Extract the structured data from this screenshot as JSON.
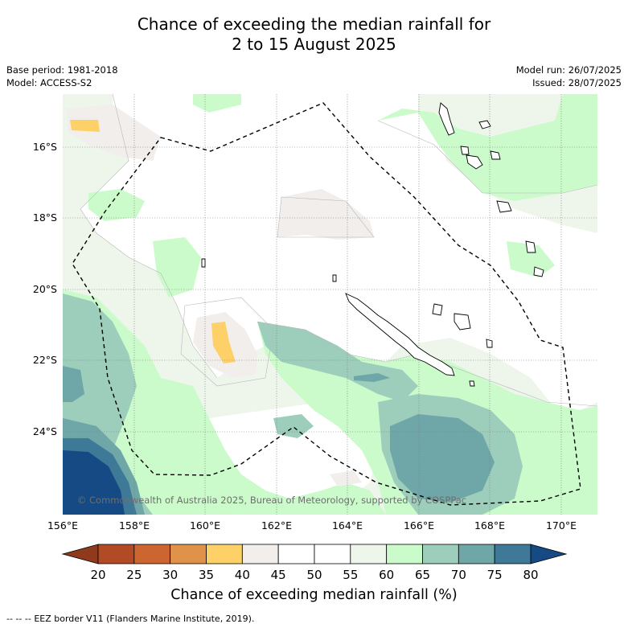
{
  "title": {
    "line1": "Chance of exceeding the median rainfall for",
    "line2": "2 to 15 August 2025"
  },
  "meta": {
    "base_period": "Base period: 1981-2018",
    "model": "Model: ACCESS-S2",
    "model_run": "Model run: 26/07/2025",
    "issued": "Issued: 28/07/2025"
  },
  "axes": {
    "lat_labels": [
      "16°S",
      "18°S",
      "20°S",
      "22°S",
      "24°S"
    ],
    "lon_labels": [
      "156°E",
      "158°E",
      "160°E",
      "162°E",
      "164°E",
      "166°E",
      "168°E",
      "170°E"
    ]
  },
  "copyright": "© Commonwealth of Australia 2025, Bureau of Meteorology, supported by COSPPac",
  "colorbar": {
    "ticks": [
      "20",
      "25",
      "30",
      "35",
      "40",
      "45",
      "50",
      "55",
      "60",
      "65",
      "70",
      "75",
      "80"
    ],
    "colors": [
      "#b24b25",
      "#cc6530",
      "#e0924a",
      "#fdd168",
      "#f1eeec",
      "#ffffff",
      "#ffffff",
      "#eef6ec",
      "#cbfbcb",
      "#9ccebb",
      "#6fa6a8",
      "#3e7997"
    ],
    "low_end_color": "#8f3a1c",
    "high_end_color": "#154a85",
    "title": "Chance of exceeding median rainfall (%)"
  },
  "legend": {
    "eez_label": "EEZ border V11 (Flanders Marine Institute, 2019)."
  },
  "colors": {
    "band_white": "#ffffff",
    "band_light_green": "#eef6ec",
    "band_green": "#cbfbcb",
    "band_teal": "#9ccebb",
    "band_dark_teal": "#6fa6a8",
    "band_blue": "#3e7997",
    "band_navy": "#154a85",
    "band_grey": "#f1eeec",
    "band_yellow": "#fdd168"
  }
}
